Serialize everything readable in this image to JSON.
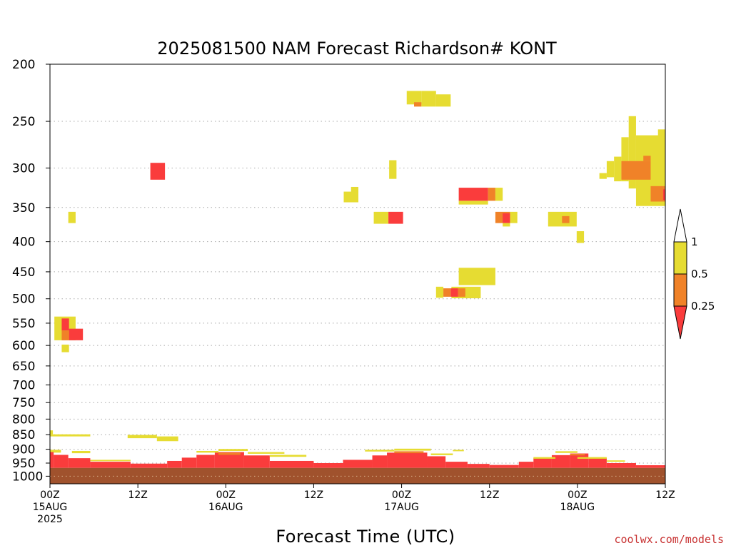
{
  "chart_data": {
    "type": "heatmap",
    "title": "2025081500 NAM Forecast Richardson# KONT",
    "xlabel": "Forecast Time (UTC)",
    "ylabel": "",
    "x_unit": "hours from 2025-08-15 00Z",
    "xlim": [
      0,
      84
    ],
    "y_scale": "log (pressure, hPa, inverted)",
    "ylim": [
      1030,
      200
    ],
    "grid": "dotted horizontal at each pressure tick",
    "y_ticks": [
      "200",
      "250",
      "300",
      "350",
      "400",
      "450",
      "500",
      "550",
      "600",
      "650",
      "700",
      "750",
      "800",
      "850",
      "900",
      "950",
      "1000"
    ],
    "x_ticks": [
      {
        "hour": 0,
        "lines": [
          "00Z",
          "15AUG",
          "2025"
        ]
      },
      {
        "hour": 12,
        "lines": [
          "12Z"
        ]
      },
      {
        "hour": 24,
        "lines": [
          "00Z",
          "16AUG"
        ]
      },
      {
        "hour": 36,
        "lines": [
          "12Z"
        ]
      },
      {
        "hour": 48,
        "lines": [
          "00Z",
          "17AUG"
        ]
      },
      {
        "hour": 60,
        "lines": [
          "12Z"
        ]
      },
      {
        "hour": 72,
        "lines": [
          "00Z",
          "18AUG"
        ]
      },
      {
        "hour": 84,
        "lines": [
          "12Z"
        ]
      }
    ],
    "legend": {
      "placement": "right",
      "levels": [
        "1",
        "0.5",
        "0.25"
      ],
      "bins": [
        {
          "range": "> 1",
          "color": "#ffffff"
        },
        {
          "range": "0.5 - 1",
          "color": "#e6dc32"
        },
        {
          "range": "0.25 - 0.5",
          "color": "#f08228"
        },
        {
          "range": "< 0.25",
          "color": "#fa3c3c"
        }
      ]
    },
    "colors": {
      "yellow": "#e6dc32",
      "orange": "#f08228",
      "red": "#fa3c3c",
      "ground": "#a0522d"
    },
    "surface_pressure_hpa": 968,
    "cells": [
      {
        "x0": 48.7,
        "x1": 50.7,
        "p0": 222,
        "p1": 234,
        "c": "yellow"
      },
      {
        "x0": 50.7,
        "x1": 52.7,
        "p0": 222,
        "p1": 236,
        "c": "yellow"
      },
      {
        "x0": 52.7,
        "x1": 54.7,
        "p0": 225,
        "p1": 236,
        "c": "yellow"
      },
      {
        "x0": 49.7,
        "x1": 50.7,
        "p0": 232,
        "p1": 236,
        "c": "orange"
      },
      {
        "x0": 13.7,
        "x1": 15.7,
        "p0": 294,
        "p1": 314,
        "c": "red"
      },
      {
        "x0": 46.3,
        "x1": 47.3,
        "p0": 291,
        "p1": 313,
        "c": "yellow"
      },
      {
        "x0": 40.1,
        "x1": 42.1,
        "p0": 329,
        "p1": 343,
        "c": "yellow"
      },
      {
        "x0": 41.1,
        "x1": 42.1,
        "p0": 323,
        "p1": 330,
        "c": "yellow"
      },
      {
        "x0": 44.2,
        "x1": 46.2,
        "p0": 356,
        "p1": 373,
        "c": "yellow"
      },
      {
        "x0": 46.2,
        "x1": 48.2,
        "p0": 356,
        "p1": 373,
        "c": "red"
      },
      {
        "x0": 55.8,
        "x1": 59.8,
        "p0": 324,
        "p1": 341,
        "c": "red"
      },
      {
        "x0": 55.8,
        "x1": 59.8,
        "p0": 341,
        "p1": 346,
        "c": "yellow"
      },
      {
        "x0": 59.8,
        "x1": 60.8,
        "p0": 324,
        "p1": 341,
        "c": "orange"
      },
      {
        "x0": 60.8,
        "x1": 61.8,
        "p0": 324,
        "p1": 341,
        "c": "yellow"
      },
      {
        "x0": 60.8,
        "x1": 62.8,
        "p0": 356,
        "p1": 372,
        "c": "orange"
      },
      {
        "x0": 61.8,
        "x1": 62.8,
        "p0": 358,
        "p1": 372,
        "c": "red"
      },
      {
        "x0": 62.8,
        "x1": 63.8,
        "p0": 356,
        "p1": 372,
        "c": "yellow"
      },
      {
        "x0": 61.8,
        "x1": 62.8,
        "p0": 372,
        "p1": 377,
        "c": "yellow"
      },
      {
        "x0": 68.0,
        "x1": 71.9,
        "p0": 356,
        "p1": 377,
        "c": "yellow"
      },
      {
        "x0": 69.9,
        "x1": 70.9,
        "p0": 362,
        "p1": 372,
        "c": "orange"
      },
      {
        "x0": 71.9,
        "x1": 72.9,
        "p0": 384,
        "p1": 402,
        "c": "yellow"
      },
      {
        "x0": 54.8,
        "x1": 58.8,
        "p0": 477,
        "p1": 499,
        "c": "yellow"
      },
      {
        "x0": 52.7,
        "x1": 53.7,
        "p0": 477,
        "p1": 498,
        "c": "yellow"
      },
      {
        "x0": 53.7,
        "x1": 54.7,
        "p0": 480,
        "p1": 496,
        "c": "orange"
      },
      {
        "x0": 54.7,
        "x1": 55.7,
        "p0": 480,
        "p1": 496,
        "c": "red"
      },
      {
        "x0": 55.7,
        "x1": 56.7,
        "p0": 480,
        "p1": 496,
        "c": "orange"
      },
      {
        "x0": 55.8,
        "x1": 60.8,
        "p0": 443,
        "p1": 474,
        "c": "yellow"
      },
      {
        "x0": 0.6,
        "x1": 3.5,
        "p0": 536,
        "p1": 588,
        "c": "yellow"
      },
      {
        "x0": 1.6,
        "x1": 2.6,
        "p0": 540,
        "p1": 566,
        "c": "red"
      },
      {
        "x0": 1.6,
        "x1": 2.6,
        "p0": 566,
        "p1": 588,
        "c": "orange"
      },
      {
        "x0": 2.6,
        "x1": 4.5,
        "p0": 562,
        "p1": 588,
        "c": "red"
      },
      {
        "x0": 1.6,
        "x1": 2.6,
        "p0": 598,
        "p1": 616,
        "c": "yellow"
      },
      {
        "x0": 2.5,
        "x1": 3.5,
        "p0": 356,
        "p1": 372,
        "c": "yellow"
      },
      {
        "x0": 75.0,
        "x1": 76.0,
        "p0": 306,
        "p1": 313,
        "c": "yellow"
      },
      {
        "x0": 76.0,
        "x1": 77.0,
        "p0": 292,
        "p1": 311,
        "c": "yellow"
      },
      {
        "x0": 77.0,
        "x1": 78.0,
        "p0": 287,
        "p1": 316,
        "c": "yellow"
      },
      {
        "x0": 78.0,
        "x1": 79.0,
        "p0": 266,
        "p1": 316,
        "c": "yellow"
      },
      {
        "x0": 79.0,
        "x1": 80.0,
        "p0": 245,
        "p1": 325,
        "c": "yellow"
      },
      {
        "x0": 80.0,
        "x1": 84.0,
        "p0": 264,
        "p1": 348,
        "c": "yellow"
      },
      {
        "x0": 83.0,
        "x1": 84.0,
        "p0": 258,
        "p1": 270,
        "c": "yellow"
      },
      {
        "x0": 78.0,
        "x1": 82.0,
        "p0": 292,
        "p1": 314,
        "c": "orange"
      },
      {
        "x0": 81.0,
        "x1": 82.0,
        "p0": 286,
        "p1": 292,
        "c": "orange"
      },
      {
        "x0": 82.0,
        "x1": 84.0,
        "p0": 322,
        "p1": 342,
        "c": "orange"
      },
      {
        "x0": 83.7,
        "x1": 84.0,
        "p0": 326,
        "p1": 340,
        "c": "red"
      },
      {
        "x0": 0.0,
        "x1": 5.5,
        "p0": 849,
        "p1": 856,
        "c": "yellow"
      },
      {
        "x0": 0.0,
        "x1": 0.4,
        "p0": 836,
        "p1": 849,
        "c": "yellow"
      },
      {
        "x0": 10.6,
        "x1": 14.6,
        "p0": 851,
        "p1": 862,
        "c": "yellow"
      },
      {
        "x0": 14.6,
        "x1": 17.5,
        "p0": 856,
        "p1": 872,
        "c": "yellow"
      },
      {
        "x0": 0.0,
        "x1": 1.5,
        "p0": 902,
        "p1": 912,
        "c": "yellow"
      },
      {
        "x0": 3.0,
        "x1": 5.5,
        "p0": 906,
        "p1": 914,
        "c": "yellow"
      },
      {
        "x0": 5.5,
        "x1": 11.0,
        "p0": 938,
        "p1": 943,
        "c": "yellow"
      },
      {
        "x0": 0.0,
        "x1": 0.5,
        "p0": 910,
        "p1": 968,
        "c": "red"
      },
      {
        "x0": 0.5,
        "x1": 2.5,
        "p0": 920,
        "p1": 968,
        "c": "red"
      },
      {
        "x0": 2.5,
        "x1": 5.5,
        "p0": 932,
        "p1": 968,
        "c": "red"
      },
      {
        "x0": 5.5,
        "x1": 11.0,
        "p0": 945,
        "p1": 968,
        "c": "red"
      },
      {
        "x0": 11.0,
        "x1": 16.0,
        "p0": 952,
        "p1": 968,
        "c": "red"
      },
      {
        "x0": 16.0,
        "x1": 18.0,
        "p0": 942,
        "p1": 968,
        "c": "red"
      },
      {
        "x0": 18.0,
        "x1": 20.0,
        "p0": 930,
        "p1": 968,
        "c": "red"
      },
      {
        "x0": 20.0,
        "x1": 22.5,
        "p0": 920,
        "p1": 968,
        "c": "red"
      },
      {
        "x0": 22.5,
        "x1": 26.5,
        "p0": 910,
        "p1": 968,
        "c": "red"
      },
      {
        "x0": 26.5,
        "x1": 30.0,
        "p0": 922,
        "p1": 968,
        "c": "red"
      },
      {
        "x0": 30.0,
        "x1": 36.0,
        "p0": 942,
        "p1": 968,
        "c": "red"
      },
      {
        "x0": 36.0,
        "x1": 40.0,
        "p0": 950,
        "p1": 968,
        "c": "red"
      },
      {
        "x0": 40.0,
        "x1": 44.0,
        "p0": 938,
        "p1": 968,
        "c": "red"
      },
      {
        "x0": 44.0,
        "x1": 46.0,
        "p0": 922,
        "p1": 968,
        "c": "red"
      },
      {
        "x0": 46.0,
        "x1": 51.5,
        "p0": 912,
        "p1": 968,
        "c": "red"
      },
      {
        "x0": 51.5,
        "x1": 54.0,
        "p0": 925,
        "p1": 968,
        "c": "red"
      },
      {
        "x0": 54.0,
        "x1": 57.0,
        "p0": 945,
        "p1": 968,
        "c": "red"
      },
      {
        "x0": 57.0,
        "x1": 60.0,
        "p0": 953,
        "p1": 968,
        "c": "red"
      },
      {
        "x0": 60.0,
        "x1": 64.0,
        "p0": 957,
        "p1": 968,
        "c": "red"
      },
      {
        "x0": 64.0,
        "x1": 66.0,
        "p0": 945,
        "p1": 968,
        "c": "red"
      },
      {
        "x0": 66.0,
        "x1": 68.5,
        "p0": 932,
        "p1": 968,
        "c": "red"
      },
      {
        "x0": 68.5,
        "x1": 71.0,
        "p0": 921,
        "p1": 968,
        "c": "red"
      },
      {
        "x0": 71.0,
        "x1": 73.5,
        "p0": 915,
        "p1": 968,
        "c": "red"
      },
      {
        "x0": 73.5,
        "x1": 76.0,
        "p0": 932,
        "p1": 968,
        "c": "red"
      },
      {
        "x0": 76.0,
        "x1": 80.0,
        "p0": 950,
        "p1": 968,
        "c": "red"
      },
      {
        "x0": 80.0,
        "x1": 84.0,
        "p0": 958,
        "p1": 968,
        "c": "red"
      },
      {
        "x0": 20.0,
        "x1": 23.0,
        "p0": 906,
        "p1": 912,
        "c": "yellow"
      },
      {
        "x0": 23.0,
        "x1": 27.0,
        "p0": 899,
        "p1": 906,
        "c": "yellow"
      },
      {
        "x0": 27.0,
        "x1": 32.0,
        "p0": 910,
        "p1": 916,
        "c": "yellow"
      },
      {
        "x0": 30.0,
        "x1": 35.0,
        "p0": 920,
        "p1": 927,
        "c": "yellow"
      },
      {
        "x0": 43.0,
        "x1": 47.0,
        "p0": 902,
        "p1": 908,
        "c": "yellow"
      },
      {
        "x0": 47.0,
        "x1": 52.0,
        "p0": 898,
        "p1": 905,
        "c": "yellow"
      },
      {
        "x0": 52.0,
        "x1": 55.0,
        "p0": 915,
        "p1": 921,
        "c": "yellow"
      },
      {
        "x0": 55.0,
        "x1": 56.5,
        "p0": 902,
        "p1": 907,
        "c": "yellow"
      },
      {
        "x0": 66.0,
        "x1": 69.0,
        "p0": 928,
        "p1": 934,
        "c": "yellow"
      },
      {
        "x0": 69.0,
        "x1": 72.0,
        "p0": 907,
        "p1": 913,
        "c": "yellow"
      },
      {
        "x0": 72.0,
        "x1": 76.0,
        "p0": 928,
        "p1": 934,
        "c": "yellow"
      },
      {
        "x0": 76.0,
        "x1": 78.5,
        "p0": 940,
        "p1": 945,
        "c": "yellow"
      },
      {
        "x0": 23.0,
        "x1": 26.0,
        "p0": 912,
        "p1": 920,
        "c": "orange"
      },
      {
        "x0": 47.0,
        "x1": 51.0,
        "p0": 907,
        "p1": 914,
        "c": "orange"
      },
      {
        "x0": 71.0,
        "x1": 73.0,
        "p0": 916,
        "p1": 922,
        "c": "orange"
      }
    ]
  },
  "credit": "coolwx.com/models"
}
